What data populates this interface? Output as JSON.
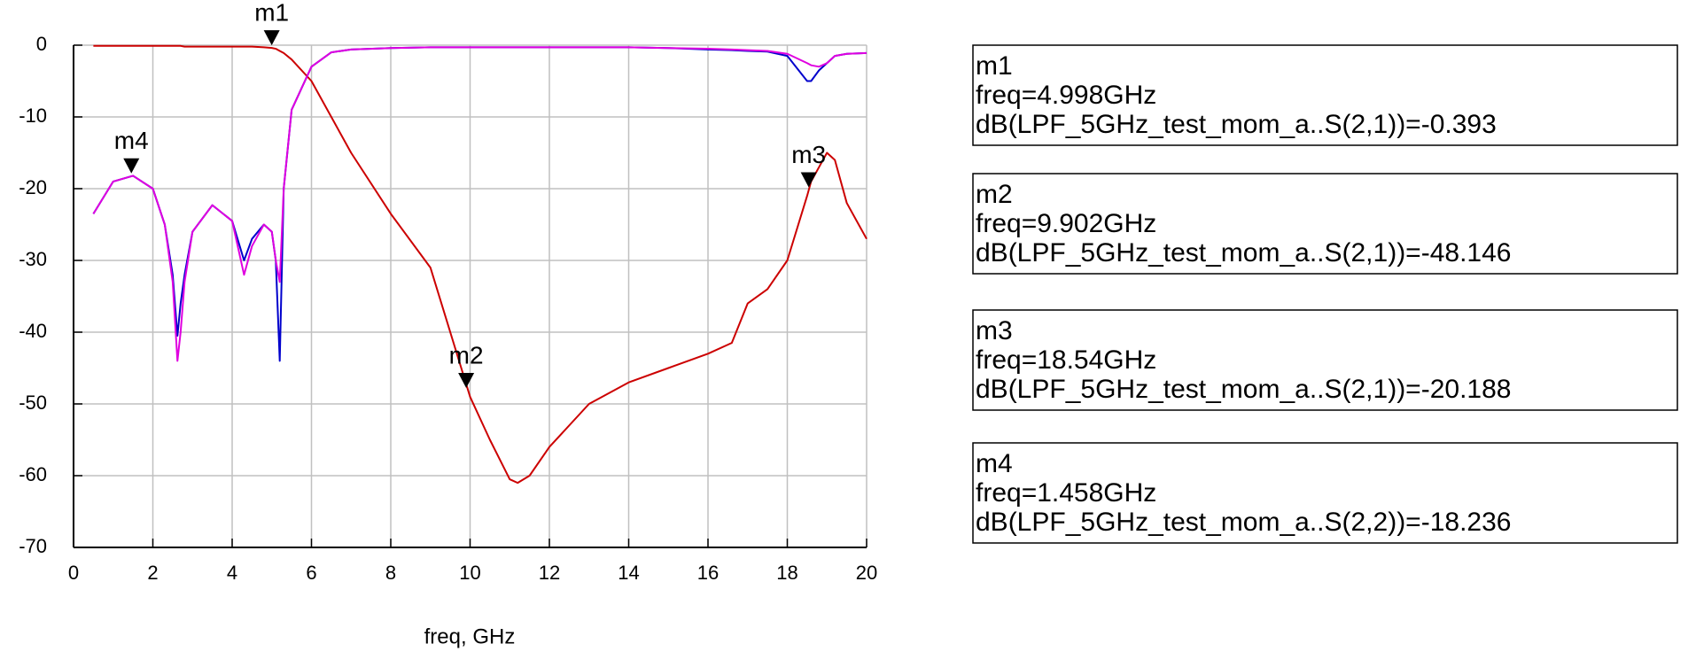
{
  "chart_data": {
    "type": "line",
    "xlabel": "freq, GHz",
    "x": [
      0.5,
      1,
      1.5,
      2,
      2.3,
      2.5,
      2.62,
      2.7,
      2.8,
      3,
      3.5,
      4,
      4.3,
      4.5,
      4.8,
      5,
      5.1,
      5.2,
      5.3,
      5.5,
      6,
      6.5,
      7,
      8,
      9,
      9.5,
      10,
      10.5,
      11,
      11.2,
      11.5,
      12,
      13,
      14,
      15,
      16,
      16.6,
      17,
      17.5,
      18,
      18.5,
      18.6,
      18.8,
      19,
      19.2,
      19.5,
      20
    ],
    "series": [
      {
        "color": "#cc0000",
        "values": [
          -0.1,
          -0.1,
          -0.1,
          -0.1,
          -0.1,
          -0.1,
          -0.1,
          -0.1,
          -0.2,
          -0.2,
          -0.2,
          -0.2,
          -0.2,
          -0.2,
          -0.3,
          -0.39,
          -0.5,
          -0.8,
          -1.1,
          -2,
          -5,
          -10,
          -15,
          -23.5,
          -31,
          -40,
          -49,
          -55,
          -60.5,
          -61,
          -60,
          -56,
          -50,
          -47,
          -45,
          -43,
          -41.5,
          -36,
          -34,
          -30,
          -21,
          -19,
          -17,
          -15,
          -16,
          -22,
          -27
        ]
      },
      {
        "color": "#0000cc",
        "values": [
          -23.5,
          -19,
          -18.2,
          -20,
          -25,
          -32,
          -40.5,
          -36,
          -32,
          -26,
          -22.3,
          -24.5,
          -30,
          -27,
          -25,
          -26,
          -30,
          -44,
          -20,
          -9,
          -3,
          -1,
          -0.6,
          -0.4,
          -0.3,
          -0.3,
          -0.3,
          -0.3,
          -0.3,
          -0.3,
          -0.3,
          -0.3,
          -0.3,
          -0.3,
          -0.4,
          -0.6,
          -0.7,
          -0.8,
          -0.9,
          -1.5,
          -5,
          -5,
          -3.5,
          -2.5,
          -1.5,
          -1.2,
          -1.1
        ]
      },
      {
        "color": "#e000e0",
        "values": [
          -23.5,
          -19,
          -18.2,
          -20,
          -25,
          -33,
          -44,
          -40,
          -33,
          -26,
          -22.3,
          -24.5,
          -32,
          -28,
          -25,
          -26,
          -30,
          -33,
          -20,
          -9,
          -3,
          -1,
          -0.6,
          -0.4,
          -0.3,
          -0.3,
          -0.3,
          -0.3,
          -0.3,
          -0.3,
          -0.3,
          -0.3,
          -0.3,
          -0.3,
          -0.4,
          -0.5,
          -0.6,
          -0.7,
          -0.8,
          -1.2,
          -2.5,
          -2.8,
          -3,
          -2.5,
          -1.5,
          -1.2,
          -1.1
        ]
      }
    ],
    "xlim": [
      0,
      20
    ],
    "xticks": [
      0,
      2,
      4,
      6,
      8,
      10,
      12,
      14,
      16,
      18,
      20
    ],
    "ylim": [
      -70,
      0
    ],
    "yticks": [
      0,
      -10,
      -20,
      -30,
      -40,
      -50,
      -60,
      -70
    ],
    "grid": true,
    "markers": [
      {
        "label": "m1",
        "x": 4.998,
        "y": -0.393,
        "lines": [
          "freq=4.998GHz",
          "dB(LPF_5GHz_test_mom_a..S(2,1))=-0.393"
        ]
      },
      {
        "label": "m2",
        "x": 9.902,
        "y": -48.146,
        "lines": [
          "freq=9.902GHz",
          "dB(LPF_5GHz_test_mom_a..S(2,1))=-48.146"
        ]
      },
      {
        "label": "m3",
        "x": 18.54,
        "y": -20.188,
        "lines": [
          "freq=18.54GHz",
          "dB(LPF_5GHz_test_mom_a..S(2,1))=-20.188"
        ]
      },
      {
        "label": "m4",
        "x": 1.458,
        "y": -18.236,
        "lines": [
          "freq=1.458GHz",
          "dB(LPF_5GHz_test_mom_a..S(2,2))=-18.236"
        ]
      }
    ]
  }
}
